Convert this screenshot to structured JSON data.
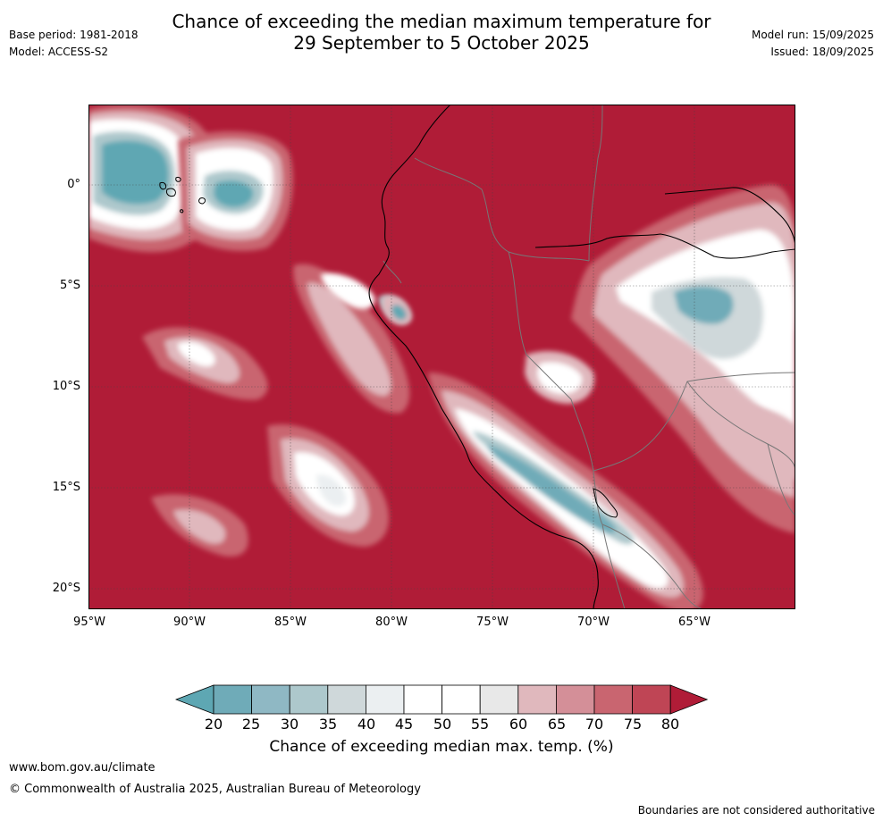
{
  "header": {
    "title_line1": "Chance of exceeding the median maximum temperature for",
    "title_line2": "29 September to 5 October 2025",
    "base_period": "Base period: 1981-2018",
    "model": "Model: ACCESS-S2",
    "model_run": "Model run: 15/09/2025",
    "issued": "Issued: 18/09/2025"
  },
  "map": {
    "lat_labels": [
      "0°",
      "5°S",
      "10°S",
      "15°S",
      "20°S"
    ],
    "lon_labels": [
      "95°W",
      "90°W",
      "85°W",
      "80°W",
      "75°W",
      "70°W",
      "65°W"
    ]
  },
  "colorbar": {
    "ticks": [
      "20",
      "25",
      "30",
      "35",
      "40",
      "45",
      "50",
      "55",
      "60",
      "65",
      "70",
      "75",
      "80"
    ],
    "colors": [
      "#5ea7b3",
      "#6fabb8",
      "#8fb8c4",
      "#adc8cc",
      "#cfd8da",
      "#ebeff1",
      "#ffffff",
      "#ffffff",
      "#e8e8e8",
      "#e0b8bd",
      "#d48f98",
      "#c96570",
      "#bf4555",
      "#b01c37"
    ],
    "label": "Chance of exceeding median max. temp. (%)"
  },
  "footer": {
    "url": "www.bom.gov.au/climate",
    "copyright": "© Commonwealth of Australia 2025, Australian Bureau of Meteorology",
    "disclaimer": "Boundaries are not considered authoritative"
  }
}
